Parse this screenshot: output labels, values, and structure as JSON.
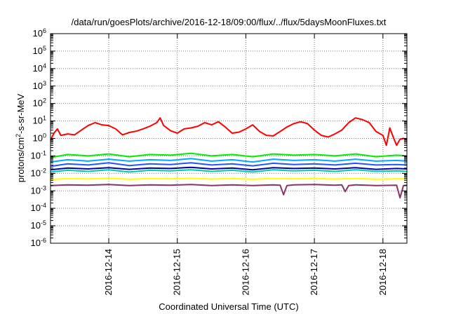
{
  "chart_data": {
    "type": "line",
    "title": "/data/run/goesPlots/archive/2016-12-18/09:00/flux/../flux/5daysMoonFluxes.txt",
    "xlabel": "Coordinated Universal Time (UTC)",
    "ylabel_parts": [
      "protons/cm",
      "2",
      "-s-sr-MeV"
    ],
    "yscale": "log",
    "ylim_exp": [
      -6,
      6
    ],
    "xlim": [
      -0.85,
      4.35
    ],
    "x_ticks": [
      {
        "label": "2016-12-14",
        "x": 0
      },
      {
        "label": "2016-12-15",
        "x": 1
      },
      {
        "label": "2016-12-16",
        "x": 2
      },
      {
        "label": "2016-12-17",
        "x": 3
      },
      {
        "label": "2016-12-18",
        "x": 4
      }
    ],
    "y_tick_exponents": [
      -6,
      -5,
      -4,
      -3,
      -2,
      -1,
      0,
      1,
      2,
      3,
      4,
      5,
      6
    ],
    "grid": true,
    "series": [
      {
        "color": "#ff0000",
        "x": [
          -0.85,
          -0.8,
          -0.75,
          -0.7,
          -0.6,
          -0.5,
          -0.4,
          -0.3,
          -0.2,
          -0.1,
          0.0,
          0.1,
          0.2,
          0.3,
          0.4,
          0.5,
          0.6,
          0.7,
          0.75,
          0.8,
          0.9,
          1.0,
          1.1,
          1.2,
          1.3,
          1.4,
          1.5,
          1.6,
          1.7,
          1.8,
          1.9,
          2.0,
          2.1,
          2.2,
          2.3,
          2.4,
          2.5,
          2.6,
          2.7,
          2.8,
          2.9,
          3.0,
          3.1,
          3.2,
          3.3,
          3.4,
          3.5,
          3.6,
          3.7,
          3.8,
          3.9,
          4.0,
          4.05,
          4.1,
          4.15,
          4.2,
          4.25,
          4.3,
          4.35
        ],
        "y": [
          0.8,
          2.0,
          3.5,
          1.5,
          1.8,
          1.6,
          3.0,
          5.5,
          8.0,
          6.0,
          5.5,
          3.5,
          1.6,
          2.2,
          2.6,
          3.5,
          5.0,
          8.0,
          15,
          5.5,
          2.8,
          2.0,
          3.5,
          4.0,
          5.0,
          8.0,
          6.0,
          9.0,
          4.5,
          2.0,
          2.3,
          3.5,
          6.0,
          2.5,
          1.5,
          1.4,
          2.5,
          4.5,
          7.0,
          9.0,
          7.0,
          3.0,
          1.5,
          1.2,
          1.8,
          3.0,
          8.0,
          15,
          12,
          8.0,
          2.5,
          1.5,
          0.4,
          4.0,
          1.2,
          0.4,
          0.9,
          1.0,
          0.9
        ]
      },
      {
        "color": "#00ee00",
        "x": [
          -0.85,
          -0.6,
          -0.3,
          0.0,
          0.3,
          0.6,
          0.9,
          1.2,
          1.5,
          1.8,
          2.1,
          2.4,
          2.7,
          3.0,
          3.3,
          3.6,
          3.9,
          4.2,
          4.35
        ],
        "y": [
          0.08,
          0.12,
          0.1,
          0.13,
          0.09,
          0.12,
          0.11,
          0.14,
          0.1,
          0.12,
          0.09,
          0.13,
          0.11,
          0.12,
          0.1,
          0.13,
          0.09,
          0.11,
          0.1
        ]
      },
      {
        "color": "#00aaff",
        "x": [
          -0.85,
          -0.6,
          -0.3,
          0.0,
          0.3,
          0.6,
          0.9,
          1.2,
          1.5,
          1.8,
          2.1,
          2.4,
          2.7,
          3.0,
          3.3,
          3.6,
          3.9,
          4.2,
          4.35
        ],
        "y": [
          0.045,
          0.06,
          0.05,
          0.065,
          0.05,
          0.06,
          0.055,
          0.07,
          0.05,
          0.06,
          0.045,
          0.065,
          0.055,
          0.06,
          0.05,
          0.065,
          0.05,
          0.055,
          0.05
        ]
      },
      {
        "color": "#2255ff",
        "x": [
          -0.85,
          -0.6,
          -0.3,
          0.0,
          0.3,
          0.6,
          0.9,
          1.2,
          1.5,
          1.8,
          2.1,
          2.4,
          2.7,
          3.0,
          3.3,
          3.6,
          3.9,
          4.2,
          4.35
        ],
        "y": [
          0.025,
          0.035,
          0.03,
          0.04,
          0.028,
          0.035,
          0.032,
          0.04,
          0.03,
          0.035,
          0.027,
          0.038,
          0.032,
          0.035,
          0.03,
          0.038,
          0.03,
          0.032,
          0.03
        ]
      },
      {
        "color": "#00ccaa",
        "x": [
          -0.85,
          -0.6,
          -0.3,
          0.0,
          0.3,
          0.6,
          0.9,
          1.2,
          1.5,
          1.8,
          2.1,
          2.4,
          2.7,
          3.0,
          3.3,
          3.6,
          3.9,
          4.2,
          4.35
        ],
        "y": [
          0.012,
          0.015,
          0.013,
          0.016,
          0.012,
          0.015,
          0.014,
          0.016,
          0.013,
          0.015,
          0.012,
          0.016,
          0.014,
          0.015,
          0.013,
          0.016,
          0.013,
          0.014,
          0.013
        ]
      },
      {
        "color": "#0000aa",
        "x": [
          -0.85,
          -0.6,
          -0.3,
          0.0,
          0.3,
          0.6,
          0.9,
          1.2,
          1.5,
          1.8,
          2.1,
          2.4,
          2.7,
          3.0,
          3.3,
          3.6,
          3.9,
          4.2,
          4.35
        ],
        "y": [
          0.016,
          0.02,
          0.018,
          0.021,
          0.017,
          0.02,
          0.019,
          0.022,
          0.018,
          0.02,
          0.016,
          0.021,
          0.019,
          0.02,
          0.018,
          0.021,
          0.017,
          0.019,
          0.018
        ]
      },
      {
        "color": "#ffff00",
        "x": [
          -0.85,
          -0.6,
          -0.3,
          0.0,
          0.3,
          0.6,
          0.9,
          1.2,
          1.5,
          1.8,
          2.1,
          2.4,
          2.7,
          3.0,
          3.3,
          3.6,
          3.9,
          4.2,
          4.35
        ],
        "y": [
          0.0045,
          0.005,
          0.0048,
          0.0052,
          0.0046,
          0.005,
          0.0049,
          0.0052,
          0.0047,
          0.005,
          0.0046,
          0.0051,
          0.0049,
          0.005,
          0.0047,
          0.0051,
          0.0046,
          0.0049,
          0.0048
        ]
      },
      {
        "color": "#883366",
        "x": [
          -0.85,
          -0.6,
          -0.3,
          0.0,
          0.3,
          0.6,
          0.9,
          1.2,
          1.5,
          1.8,
          2.1,
          2.4,
          2.5,
          2.55,
          2.6,
          2.7,
          3.0,
          3.3,
          3.4,
          3.45,
          3.5,
          3.6,
          3.9,
          4.2,
          4.25,
          4.3,
          4.35
        ],
        "y": [
          0.002,
          0.0022,
          0.0021,
          0.0023,
          0.002,
          0.0022,
          0.0021,
          0.0023,
          0.002,
          0.0022,
          0.002,
          0.0022,
          0.0021,
          0.0006,
          0.002,
          0.0022,
          0.0023,
          0.0021,
          0.0022,
          0.0009,
          0.002,
          0.0022,
          0.002,
          0.0021,
          0.0004,
          0.002,
          0.0021
        ]
      }
    ]
  }
}
